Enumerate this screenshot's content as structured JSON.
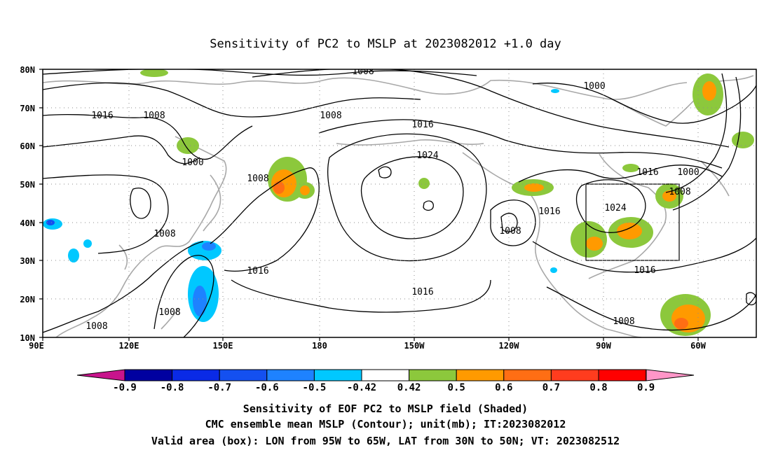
{
  "title": "Sensitivity of PC2 to MSLP at 2023082012 +1.0 day",
  "map": {
    "lon_ticks": [
      "90E",
      "120E",
      "150E",
      "180",
      "150W",
      "120W",
      "90W",
      "60W"
    ],
    "lat_ticks": [
      "80N",
      "70N",
      "60N",
      "50N",
      "40N",
      "30N",
      "20N",
      "10N"
    ],
    "grid": "dotted",
    "valid_box": {
      "lon": [
        -95,
        -65
      ],
      "lat": [
        30,
        50
      ]
    }
  },
  "contour_labels": [
    "1008",
    "1000",
    "1016",
    "1008",
    "1008",
    "1000",
    "1016",
    "1008",
    "1024",
    "1016",
    "1000",
    "1008",
    "1008",
    "1024",
    "1008",
    "1016",
    "1016",
    "1016",
    "1008",
    "1008",
    "1008"
  ],
  "colorbar": {
    "ticks": [
      "-0.9",
      "-0.8",
      "-0.7",
      "-0.6",
      "-0.5",
      "-0.42",
      "0.42",
      "0.5",
      "0.6",
      "0.7",
      "0.8",
      "0.9"
    ],
    "colors": [
      "#0000a0",
      "#0a2ae6",
      "#1450f0",
      "#1e82ff",
      "#00c8ff",
      "#ffffff",
      "#8cc83c",
      "#ff9a00",
      "#ff6e14",
      "#ff3c1e",
      "#ff0000"
    ],
    "low_color": "#c8148c",
    "high_color": "#ff96c8"
  },
  "captions": {
    "line1": "Sensitivity of EOF PC2 to MSLP field (Shaded)",
    "line2": "CMC ensemble mean MSLP (Contour); unit(mb); IT:2023082012",
    "line3": "Valid area (box): LON from 95W to 65W, LAT from 30N to 50N; VT: 2023082512"
  }
}
